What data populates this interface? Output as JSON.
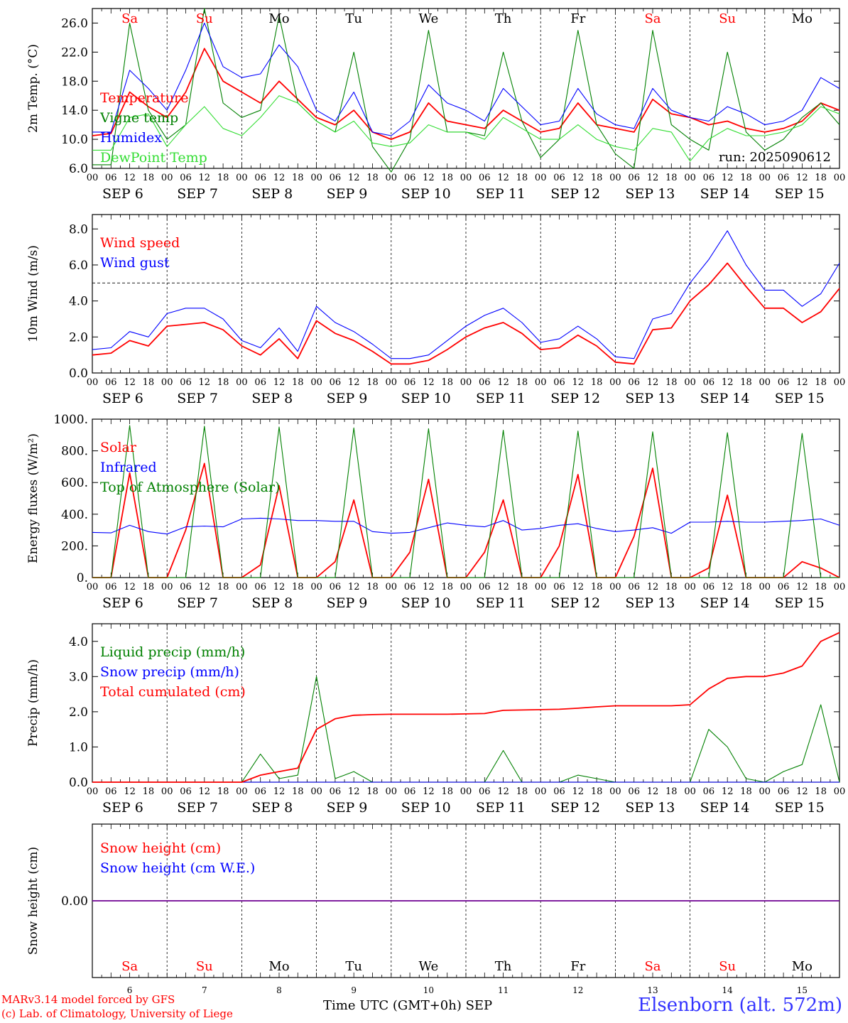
{
  "station": "Elsenborn (alt. 572m)",
  "credits": [
    "MARv3.14 model forced by GFS",
    "(c) Lab. of Climatology, University of Liege"
  ],
  "x_axis_title": "Time UTC (GMT+0h) SEP",
  "run_label": "run: 2025090612",
  "colors": {
    "red": "#ff0000",
    "green": "#008000",
    "blue": "#0000ff",
    "lightgreen": "#33dd33",
    "weekend": "#ff0000"
  },
  "days": [
    {
      "date": "SEP 6",
      "dow": "Sa",
      "num": "6",
      "weekend": true
    },
    {
      "date": "SEP 7",
      "dow": "Su",
      "num": "7",
      "weekend": true
    },
    {
      "date": "SEP 8",
      "dow": "Mo",
      "num": "8",
      "weekend": false
    },
    {
      "date": "SEP 9",
      "dow": "Tu",
      "num": "9",
      "weekend": false
    },
    {
      "date": "SEP 10",
      "dow": "We",
      "num": "10",
      "weekend": false
    },
    {
      "date": "SEP 11",
      "dow": "Th",
      "num": "11",
      "weekend": false
    },
    {
      "date": "SEP 12",
      "dow": "Fr",
      "num": "12",
      "weekend": false
    },
    {
      "date": "SEP 13",
      "dow": "Sa",
      "num": "13",
      "weekend": true
    },
    {
      "date": "SEP 14",
      "dow": "Su",
      "num": "14",
      "weekend": true
    },
    {
      "date": "SEP 15",
      "dow": "Mo",
      "num": "15",
      "weekend": false
    }
  ],
  "hour_labels": [
    "00",
    "06",
    "12",
    "18"
  ],
  "chart_data": [
    {
      "type": "line",
      "ylabel": "2m Temp. (°C)",
      "ylim": [
        6,
        28
      ],
      "yticks": [
        "6.0",
        "10.0",
        "14.0",
        "18.0",
        "22.0",
        "26.0"
      ],
      "ytick_values": [
        6,
        10,
        14,
        18,
        22,
        26
      ],
      "x_hours": [
        0,
        6,
        12,
        18,
        24,
        30,
        36,
        42,
        48,
        54,
        60,
        66,
        72,
        78,
        84,
        90,
        96,
        102,
        108,
        114,
        120,
        126,
        132,
        138,
        144,
        150,
        156,
        162,
        168,
        174,
        180,
        186,
        192,
        198,
        204,
        210,
        216,
        222,
        228,
        234,
        240
      ],
      "series": [
        {
          "name": "Temperature",
          "color": "#ff0000",
          "values": [
            10.5,
            10.8,
            16.5,
            14.5,
            13.0,
            16.5,
            22.5,
            18.0,
            16.5,
            15.0,
            18.0,
            15.5,
            13.0,
            12.0,
            14.0,
            11.0,
            10.0,
            11.0,
            15.0,
            12.5,
            12.0,
            11.5,
            14.0,
            12.5,
            11.0,
            11.5,
            15.0,
            12.0,
            11.5,
            11.0,
            15.5,
            13.5,
            13.0,
            12.0,
            12.5,
            11.5,
            11.0,
            11.5,
            12.5,
            15.0,
            14.0
          ]
        },
        {
          "name": "Vigne temp",
          "color": "#008000",
          "values": [
            6.5,
            6.5,
            26.0,
            14.0,
            10.0,
            12.0,
            28.0,
            15.0,
            13.0,
            14.0,
            27.0,
            15.0,
            12.5,
            11.0,
            22.0,
            9.0,
            5.5,
            10.0,
            25.0,
            11.0,
            11.0,
            10.5,
            22.0,
            12.5,
            7.5,
            10.0,
            25.0,
            12.0,
            8.0,
            6.0,
            25.0,
            12.0,
            10.0,
            8.5,
            22.0,
            11.0,
            8.5,
            10.0,
            13.0,
            15.0,
            12.0
          ]
        },
        {
          "name": "Humidex",
          "color": "#0000ff",
          "values": [
            11.0,
            11.0,
            19.5,
            17.0,
            14.0,
            19.5,
            26.0,
            20.0,
            18.5,
            19.0,
            23.0,
            20.0,
            14.0,
            12.5,
            16.5,
            11.0,
            10.5,
            12.5,
            17.5,
            15.0,
            14.0,
            12.5,
            17.0,
            14.5,
            12.0,
            12.5,
            17.0,
            13.5,
            12.0,
            11.5,
            17.0,
            14.0,
            13.0,
            12.5,
            14.5,
            13.5,
            12.0,
            12.5,
            14.0,
            18.5,
            17.0
          ]
        },
        {
          "name": "DewPoint Temp",
          "color": "#33dd33",
          "values": [
            8.5,
            8.5,
            13.0,
            13.5,
            9.0,
            12.0,
            14.5,
            11.5,
            10.5,
            13.0,
            16.0,
            15.0,
            12.5,
            11.0,
            12.5,
            9.5,
            9.0,
            9.5,
            12.0,
            11.0,
            11.0,
            10.0,
            13.0,
            11.5,
            10.0,
            10.0,
            12.0,
            10.0,
            9.0,
            8.5,
            11.5,
            11.0,
            7.0,
            10.0,
            11.5,
            10.5,
            10.5,
            11.0,
            12.0,
            14.5,
            13.5
          ]
        }
      ],
      "legend": [
        "Temperature",
        "Vigne temp",
        "Humidex",
        "DewPoint Temp"
      ],
      "legend_placement": "left"
    },
    {
      "type": "line",
      "ylabel": "10m Wind (m/s)",
      "ylim": [
        0,
        8.8
      ],
      "yticks": [
        "0.0",
        "2.0",
        "4.0",
        "6.0",
        "8.0"
      ],
      "ytick_values": [
        0,
        2,
        4,
        6,
        8
      ],
      "reference_line": 5.0,
      "x_hours": [
        0,
        6,
        12,
        18,
        24,
        30,
        36,
        42,
        48,
        54,
        60,
        66,
        72,
        78,
        84,
        90,
        96,
        102,
        108,
        114,
        120,
        126,
        132,
        138,
        144,
        150,
        156,
        162,
        168,
        174,
        180,
        186,
        192,
        198,
        204,
        210,
        216,
        222,
        228,
        234,
        240
      ],
      "series": [
        {
          "name": "Wind speed",
          "color": "#ff0000",
          "values": [
            1.0,
            1.1,
            1.8,
            1.5,
            2.6,
            2.7,
            2.8,
            2.4,
            1.5,
            1.0,
            1.9,
            0.8,
            2.9,
            2.2,
            1.8,
            1.2,
            0.5,
            0.5,
            0.7,
            1.3,
            2.0,
            2.5,
            2.8,
            2.2,
            1.3,
            1.4,
            2.1,
            1.5,
            0.6,
            0.5,
            2.4,
            2.5,
            4.0,
            4.9,
            6.1,
            4.8,
            3.6,
            3.6,
            2.8,
            3.4,
            4.7
          ]
        },
        {
          "name": "Wind gust",
          "color": "#0000ff",
          "values": [
            1.3,
            1.4,
            2.3,
            2.0,
            3.3,
            3.6,
            3.6,
            3.0,
            1.8,
            1.4,
            2.5,
            1.2,
            3.7,
            2.8,
            2.3,
            1.6,
            0.8,
            0.8,
            1.0,
            1.8,
            2.6,
            3.2,
            3.6,
            2.8,
            1.7,
            1.9,
            2.6,
            1.9,
            0.9,
            0.8,
            3.0,
            3.3,
            5.0,
            6.3,
            7.9,
            6.0,
            4.6,
            4.6,
            3.7,
            4.4,
            6.1
          ]
        }
      ],
      "legend": [
        "Wind speed",
        "Wind gust"
      ],
      "legend_placement": "left"
    },
    {
      "type": "line",
      "ylabel": "Energy fluxes (W/m²)",
      "ylim": [
        0,
        1000
      ],
      "yticks": [
        "0.",
        "200.",
        "400.",
        "600.",
        "800.",
        "1000."
      ],
      "ytick_values": [
        0,
        200,
        400,
        600,
        800,
        1000
      ],
      "x_hours": [
        0,
        6,
        12,
        18,
        24,
        30,
        36,
        42,
        48,
        54,
        60,
        66,
        72,
        78,
        84,
        90,
        96,
        102,
        108,
        114,
        120,
        126,
        132,
        138,
        144,
        150,
        156,
        162,
        168,
        174,
        180,
        186,
        192,
        198,
        204,
        210,
        216,
        222,
        228,
        234,
        240
      ],
      "series": [
        {
          "name": "Solar",
          "color": "#ff0000",
          "values": [
            0,
            0,
            660,
            0,
            0,
            300,
            720,
            0,
            0,
            80,
            580,
            0,
            0,
            100,
            490,
            0,
            0,
            160,
            620,
            0,
            0,
            160,
            490,
            0,
            0,
            200,
            650,
            0,
            0,
            260,
            690,
            0,
            0,
            60,
            520,
            0,
            0,
            0,
            100,
            60,
            0
          ]
        },
        {
          "name": "Infrared",
          "color": "#0000ff",
          "values": [
            285,
            282,
            330,
            290,
            275,
            320,
            325,
            320,
            370,
            375,
            370,
            360,
            360,
            355,
            355,
            290,
            280,
            285,
            315,
            345,
            330,
            320,
            360,
            300,
            310,
            330,
            340,
            310,
            290,
            300,
            315,
            280,
            350,
            350,
            355,
            350,
            350,
            355,
            360,
            370,
            330
          ]
        },
        {
          "name": "Top of Atmosphere (Solar)",
          "color": "#008000",
          "values": [
            0,
            0,
            960,
            0,
            0,
            0,
            955,
            0,
            0,
            0,
            950,
            0,
            0,
            0,
            945,
            0,
            0,
            0,
            940,
            0,
            0,
            0,
            930,
            0,
            0,
            0,
            925,
            0,
            0,
            0,
            920,
            0,
            0,
            0,
            915,
            0,
            0,
            0,
            910,
            0,
            0
          ]
        }
      ],
      "legend": [
        "Solar",
        "Infrared",
        "Top of Atmosphere (Solar)"
      ],
      "legend_placement": "left"
    },
    {
      "type": "line",
      "ylabel": "Precip (mm/h)",
      "ylim": [
        0,
        4.5
      ],
      "yticks": [
        "0.0",
        "1.0",
        "2.0",
        "3.0",
        "4.0"
      ],
      "ytick_values": [
        0,
        1,
        2,
        3,
        4
      ],
      "x_hours": [
        0,
        6,
        12,
        18,
        24,
        30,
        36,
        42,
        48,
        54,
        60,
        66,
        72,
        78,
        84,
        90,
        96,
        102,
        108,
        114,
        120,
        126,
        132,
        138,
        144,
        150,
        156,
        162,
        168,
        174,
        180,
        186,
        192,
        198,
        204,
        210,
        216,
        222,
        228,
        234,
        240
      ],
      "series": [
        {
          "name": "Liquid precip (mm/h)",
          "color": "#008000",
          "values": [
            0,
            0,
            0,
            0,
            0,
            0,
            0,
            0,
            0,
            0.8,
            0.1,
            0.2,
            3.0,
            0.1,
            0.3,
            0,
            0,
            0,
            0,
            0,
            0,
            0,
            0.9,
            0,
            0,
            0,
            0.2,
            0.1,
            0,
            0,
            0,
            0,
            0,
            1.5,
            1.0,
            0.1,
            0,
            0.3,
            0.5,
            2.2,
            0
          ]
        },
        {
          "name": "Snow precip (mm/h)",
          "color": "#0000ff",
          "values": [
            0,
            0,
            0,
            0,
            0,
            0,
            0,
            0,
            0,
            0,
            0,
            0,
            0,
            0,
            0,
            0,
            0,
            0,
            0,
            0,
            0,
            0,
            0,
            0,
            0,
            0,
            0,
            0,
            0,
            0,
            0,
            0,
            0,
            0,
            0,
            0,
            0,
            0,
            0,
            0,
            0
          ]
        },
        {
          "name": "Total cumulated (cm)",
          "color": "#ff0000",
          "values": [
            0,
            0,
            0,
            0,
            0,
            0,
            0,
            0,
            0,
            0.2,
            0.3,
            0.4,
            1.5,
            1.8,
            1.9,
            1.92,
            1.93,
            1.93,
            1.93,
            1.93,
            1.94,
            1.95,
            2.04,
            2.05,
            2.06,
            2.07,
            2.1,
            2.14,
            2.17,
            2.17,
            2.17,
            2.17,
            2.2,
            2.65,
            2.95,
            3.0,
            3.0,
            3.1,
            3.3,
            4.0,
            4.25
          ]
        }
      ],
      "legend": [
        "Liquid precip (mm/h)",
        "Snow precip (mm/h)",
        "Total cumulated (cm)"
      ],
      "legend_placement": "left"
    },
    {
      "type": "line",
      "ylabel": "Snow height (cm)",
      "yticks": [
        "0.00"
      ],
      "ytick_values": [
        0
      ],
      "x_hours": [
        0,
        240
      ],
      "series": [
        {
          "name": "Snow height (cm)",
          "color": "#ff0000",
          "values": [
            0,
            0
          ]
        },
        {
          "name": "Snow height (cm W.E.)",
          "color": "#0000ff",
          "values": [
            0,
            0
          ]
        }
      ],
      "legend": [
        "Snow height (cm)",
        "Snow height (cm W.E.)"
      ],
      "legend_placement": "left"
    }
  ]
}
